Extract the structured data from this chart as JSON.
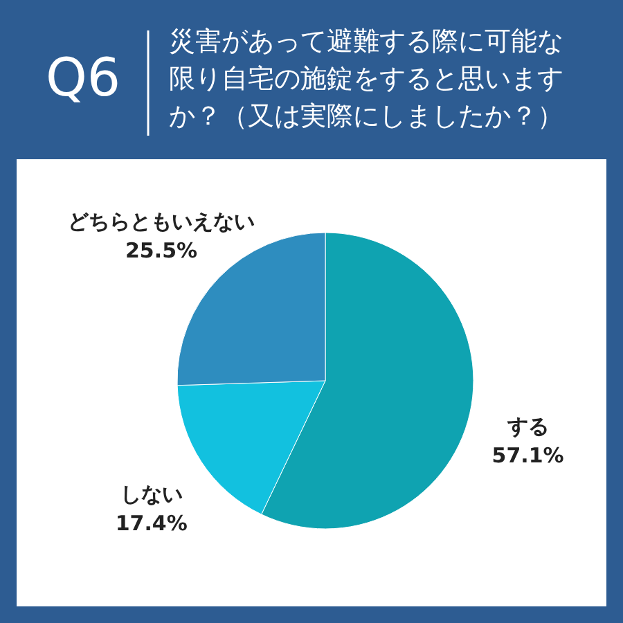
{
  "chart_data": {
    "type": "pie",
    "title": "災害があって避難する際に可能な限り自宅の施錠をすると思いますか？（又は実際にしましたか？）",
    "subtitle": "Q6",
    "categories": [
      "する",
      "しない",
      "どちらともいえない"
    ],
    "values": [
      57.1,
      17.4,
      25.5
    ],
    "colors": [
      "#0fa3b1",
      "#12c1df",
      "#2e8dbf"
    ],
    "value_labels": [
      "57.1%",
      "17.4%",
      "25.5%"
    ]
  }
}
